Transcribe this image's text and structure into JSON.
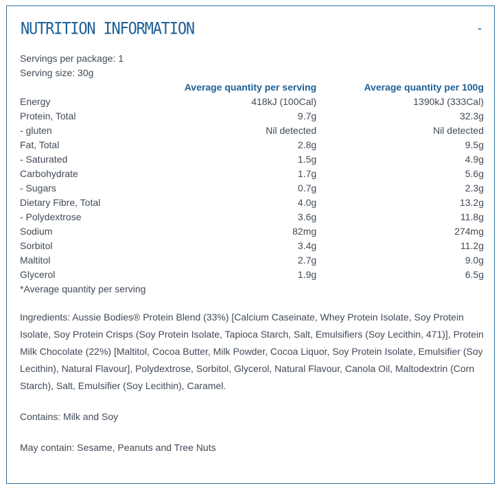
{
  "header": {
    "title": "NUTRITION INFORMATION",
    "toggle_symbol": "-"
  },
  "servings": {
    "per_package": "Servings per package: 1",
    "size": "Serving size: 30g"
  },
  "table": {
    "columns": [
      "",
      "Average quantity per serving",
      "Average quantity per 100g"
    ],
    "rows": [
      [
        "Energy",
        "418kJ (100Cal)",
        "1390kJ (333Cal)"
      ],
      [
        "Protein, Total",
        "9.7g",
        "32.3g"
      ],
      [
        "- gluten",
        "Nil detected",
        "Nil detected"
      ],
      [
        "Fat, Total",
        "2.8g",
        "9.5g"
      ],
      [
        "- Saturated",
        "1.5g",
        "4.9g"
      ],
      [
        "Carbohydrate",
        "1.7g",
        "5.6g"
      ],
      [
        "- Sugars",
        "0.7g",
        "2.3g"
      ],
      [
        "Dietary Fibre, Total",
        "4.0g",
        "13.2g"
      ],
      [
        "- Polydextrose",
        "3.6g",
        "11.8g"
      ],
      [
        "Sodium",
        "82mg",
        "274mg"
      ],
      [
        "Sorbitol",
        "3.4g",
        "11.2g"
      ],
      [
        "Maltitol",
        "2.7g",
        "9.0g"
      ],
      [
        "Glycerol",
        "1.9g",
        "6.5g"
      ]
    ],
    "footnote": "*Average quantity per serving"
  },
  "ingredients": "Ingredients: Aussie Bodies® Protein Blend (33%) [Calcium Caseinate, Whey Protein Isolate, Soy Protein Isolate, Soy Protein Crisps (Soy Protein Isolate, Tapioca Starch, Salt, Emulsifiers (Soy Lecithin, 471)], Protein Milk Chocolate (22%) [Maltitol, Cocoa Butter, Milk Powder, Cocoa Liquor, Soy Protein Isolate, Emulsifier (Soy Lecithin), Natural Flavour], Polydextrose, Sorbitol, Glycerol, Natural Flavour, Canola Oil, Maltodextrin (Corn Starch), Salt, Emulsifier (Soy Lecithin), Caramel.",
  "contains": "Contains: Milk and Soy",
  "may_contain": "May contain: Sesame, Peanuts and Tree Nuts"
}
